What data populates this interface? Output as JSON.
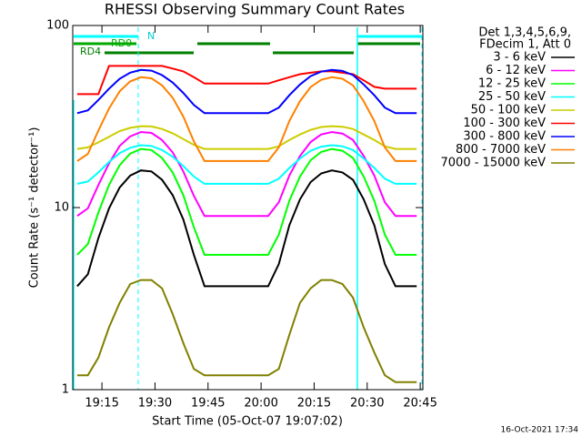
{
  "chart_data": {
    "type": "line",
    "title": "RHESSI Observing Summary Count Rates",
    "x_label": "Start Time (05-Oct-07 19:07:02)",
    "y_label": "Count Rate (s⁻¹ detector⁻¹)",
    "legend_header": [
      "Det 1,3,4,5,6,9,",
      "FDecim 1, Att 0"
    ],
    "annotations": [
      "N",
      "RD0",
      "RD4"
    ],
    "timestamp": "16-Oct-2021 17:34",
    "log_y": true,
    "xlim": [
      "19:07",
      "20:46"
    ],
    "xticks": [
      "19:15",
      "19:30",
      "19:45",
      "20:00",
      "20:15",
      "20:30",
      "20:45"
    ],
    "ylim": [
      1,
      100
    ],
    "yticks": [
      1,
      10,
      100
    ],
    "x": [
      "19:08",
      "19:11",
      "19:14",
      "19:17",
      "19:20",
      "19:23",
      "19:26",
      "19:29",
      "19:32",
      "19:35",
      "19:38",
      "19:41",
      "19:44",
      "19:47",
      "19:50",
      "19:53",
      "19:56",
      "19:59",
      "20:02",
      "20:05",
      "20:08",
      "20:11",
      "20:14",
      "20:17",
      "20:20",
      "20:23",
      "20:26",
      "20:29",
      "20:32",
      "20:35",
      "20:38",
      "20:41",
      "20:44"
    ],
    "series": [
      {
        "name": "3 - 6 keV",
        "color": "#000000",
        "values": [
          3.7,
          4.3,
          6.8,
          9.9,
          12.9,
          15.0,
          16.0,
          15.8,
          14.2,
          11.7,
          8.6,
          5.5,
          3.7,
          3.7,
          3.7,
          3.7,
          3.7,
          3.7,
          3.7,
          4.9,
          8.0,
          11.1,
          13.8,
          15.4,
          16.0,
          15.6,
          14.2,
          11.1,
          8.0,
          4.9,
          3.7,
          3.7,
          3.7
        ]
      },
      {
        "name": "6 - 12 keV",
        "color": "#ff00ff",
        "values": [
          9,
          9.9,
          13.3,
          17.5,
          21.8,
          24.6,
          26,
          25.7,
          23.5,
          20.1,
          15.8,
          11.6,
          9,
          9,
          9,
          9,
          9,
          9,
          9,
          10.7,
          15,
          19.2,
          22.9,
          25.2,
          26,
          25.5,
          23.5,
          19.2,
          15,
          10.7,
          9,
          9,
          9
        ]
      },
      {
        "name": "12 - 25 keV",
        "color": "#00ff00",
        "values": [
          5.5,
          6.3,
          9.4,
          13.3,
          17.1,
          19.8,
          21,
          20.7,
          18.7,
          15.6,
          11.7,
          7.8,
          5.5,
          5.5,
          5.5,
          5.5,
          5.5,
          5.5,
          5.5,
          7.1,
          10.9,
          14.8,
          18.2,
          20.2,
          21,
          20.5,
          18.7,
          14.8,
          10.9,
          7.1,
          5.5,
          5.5,
          5.5
        ]
      },
      {
        "name": "25 - 50 keV",
        "color": "#00ffff",
        "values": [
          13.5,
          13.9,
          15.6,
          17.8,
          19.9,
          21.3,
          22,
          21.8,
          20.7,
          19,
          16.9,
          14.8,
          13.5,
          13.5,
          13.5,
          13.5,
          13.5,
          13.5,
          13.5,
          14.4,
          16.5,
          18.6,
          20.5,
          21.6,
          22,
          21.7,
          20.7,
          18.6,
          16.5,
          14.4,
          13.5,
          13.5,
          13.5
        ]
      },
      {
        "name": "50 - 100 keV",
        "color": "#cccc00",
        "values": [
          21,
          21.4,
          22.8,
          24.5,
          26.3,
          27.4,
          28,
          27.9,
          27,
          25.6,
          23.8,
          22.1,
          21,
          21,
          21,
          21,
          21,
          21,
          21,
          21.7,
          23.5,
          25.2,
          26.7,
          27.7,
          28,
          27.8,
          27,
          25.2,
          23.5,
          21.7,
          21,
          21,
          21
        ]
      },
      {
        "name": "100 - 300 keV",
        "color": "#ff0000",
        "values": [
          42,
          42,
          42,
          60,
          60,
          60,
          60,
          60,
          60,
          58,
          56,
          52,
          48,
          48,
          48,
          48,
          48,
          48,
          48,
          50,
          52,
          54,
          55,
          56,
          56,
          55,
          54,
          50,
          46,
          45,
          45,
          45,
          45
        ]
      },
      {
        "name": "300 - 800 keV",
        "color": "#0000ff",
        "values": [
          33,
          34.2,
          39,
          45,
          51,
          55.1,
          57,
          56.5,
          53.4,
          48.6,
          42.6,
          36.6,
          33,
          33,
          33,
          33,
          33,
          33,
          33,
          35.4,
          41.4,
          47.4,
          52.7,
          55.8,
          57,
          56.3,
          53.4,
          47.4,
          41.4,
          35.4,
          33,
          33,
          33
        ]
      },
      {
        "name": "800 - 7000 keV",
        "color": "#ff8000",
        "values": [
          18,
          19.7,
          26.5,
          35,
          43.5,
          49.3,
          52,
          51.3,
          46.9,
          40.1,
          31.6,
          23.1,
          18,
          18,
          18,
          18,
          18,
          18,
          18,
          21.4,
          29.9,
          38.4,
          45.9,
          50.3,
          52,
          51,
          46.9,
          38.4,
          29.9,
          21.4,
          18,
          18,
          18
        ]
      },
      {
        "name": "7000 - 15000 keV",
        "color": "#808000",
        "values": [
          1.2,
          1.2,
          1.5,
          2.2,
          3.0,
          3.8,
          4,
          4,
          3.6,
          2.6,
          1.8,
          1.3,
          1.2,
          1.2,
          1.2,
          1.2,
          1.2,
          1.2,
          1.2,
          1.3,
          2,
          3,
          3.6,
          4,
          4,
          3.8,
          3.2,
          2.2,
          1.6,
          1.2,
          1.1,
          1.1,
          1.1
        ]
      }
    ]
  }
}
